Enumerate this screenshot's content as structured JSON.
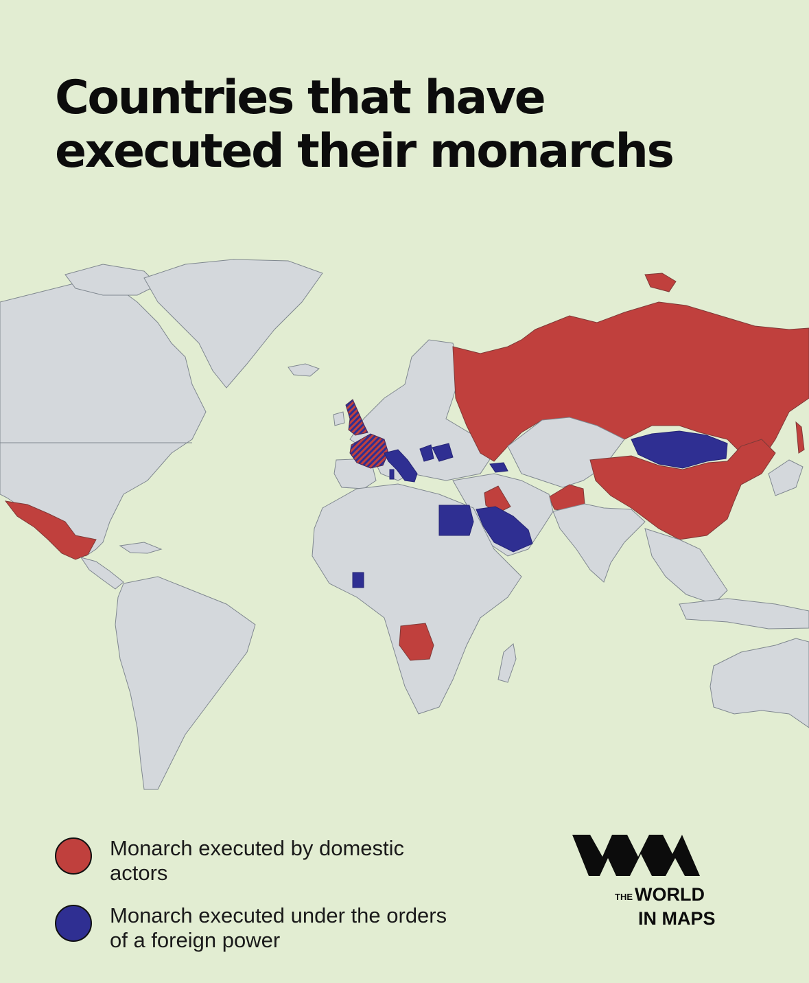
{
  "title": {
    "line1": "Countries that have",
    "line2": "executed their monarchs"
  },
  "legend": [
    {
      "label": "Monarch executed by domestic actors",
      "color": "#c0403d"
    },
    {
      "label": "Monarch executed under the orders of a foreign power",
      "color": "#2f2f92"
    }
  ],
  "colors": {
    "background": "#e2edd2",
    "land": "#d4d8dc",
    "domestic": "#c0403d",
    "foreign": "#2f2f92",
    "both": "hatched red and blue"
  },
  "logo": {
    "the": "THE",
    "line1": "WORLD",
    "line2": "IN MAPS"
  }
}
